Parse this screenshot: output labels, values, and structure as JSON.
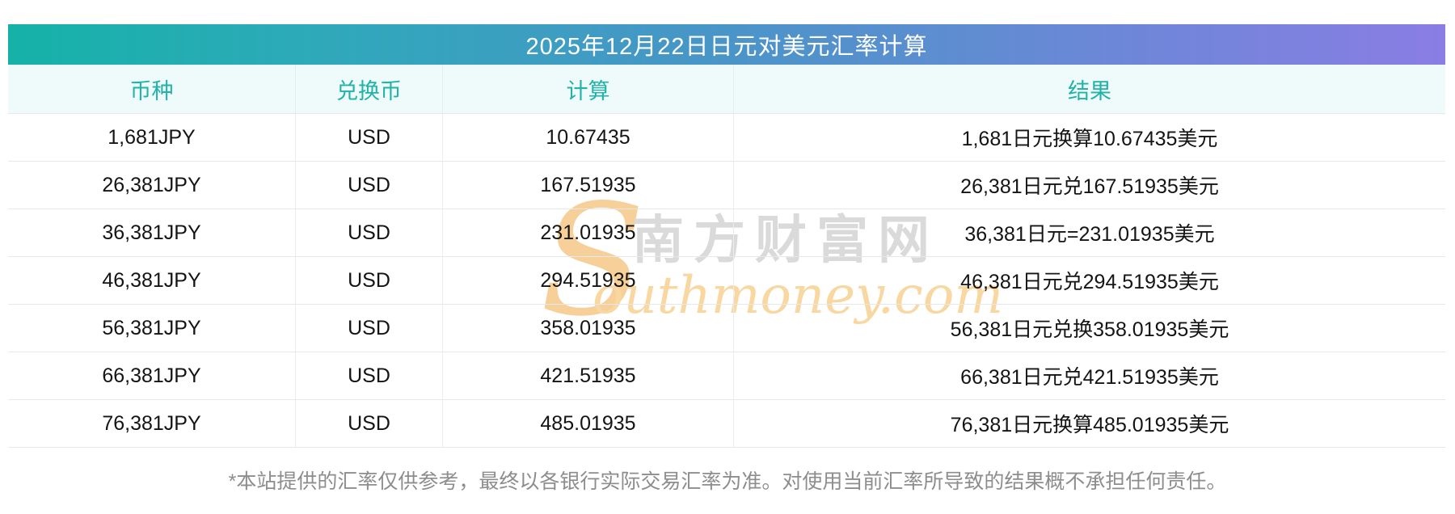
{
  "title_bar": {
    "title": "2025年12月22日日元对美元汇率计算"
  },
  "table": {
    "headers": [
      "币种",
      "兑换币",
      "计算",
      "结果"
    ],
    "rows": [
      [
        "1,681JPY",
        "USD",
        "10.67435",
        "1,681日元换算10.67435美元"
      ],
      [
        "26,381JPY",
        "USD",
        "167.51935",
        "26,381日元兑167.51935美元"
      ],
      [
        "36,381JPY",
        "USD",
        "231.01935",
        "36,381日元=231.01935美元"
      ],
      [
        "46,381JPY",
        "USD",
        "294.51935",
        "46,381日元兑294.51935美元"
      ],
      [
        "56,381JPY",
        "USD",
        "358.01935",
        "56,381日元兑换358.01935美元"
      ],
      [
        "66,381JPY",
        "USD",
        "421.51935",
        "66,381日元兑421.51935美元"
      ],
      [
        "76,381JPY",
        "USD",
        "485.01935",
        "76,381日元换算485.01935美元"
      ]
    ]
  },
  "watermark": {
    "initial": "S",
    "cn": "南方财富网",
    "en": "outhmoney.com"
  },
  "footer": {
    "disclaimer": "*本站提供的汇率仅供参考，最终以各银行实际交易汇率为准。对使用当前汇率所导致的结果概不承担任何责任。"
  },
  "colors": {
    "gradient_start": "#15b2a8",
    "gradient_mid": "#4796c7",
    "gradient_end": "#8a7de4",
    "table_header_bg": "#eefbfa",
    "table_header_text": "#21b2a8",
    "row_border": "#e3e9ec",
    "row_text": "#141414",
    "footer_text": "#8d8d8d",
    "watermark_gray": "#dadada",
    "watermark_orange": "#f8d7a0"
  }
}
